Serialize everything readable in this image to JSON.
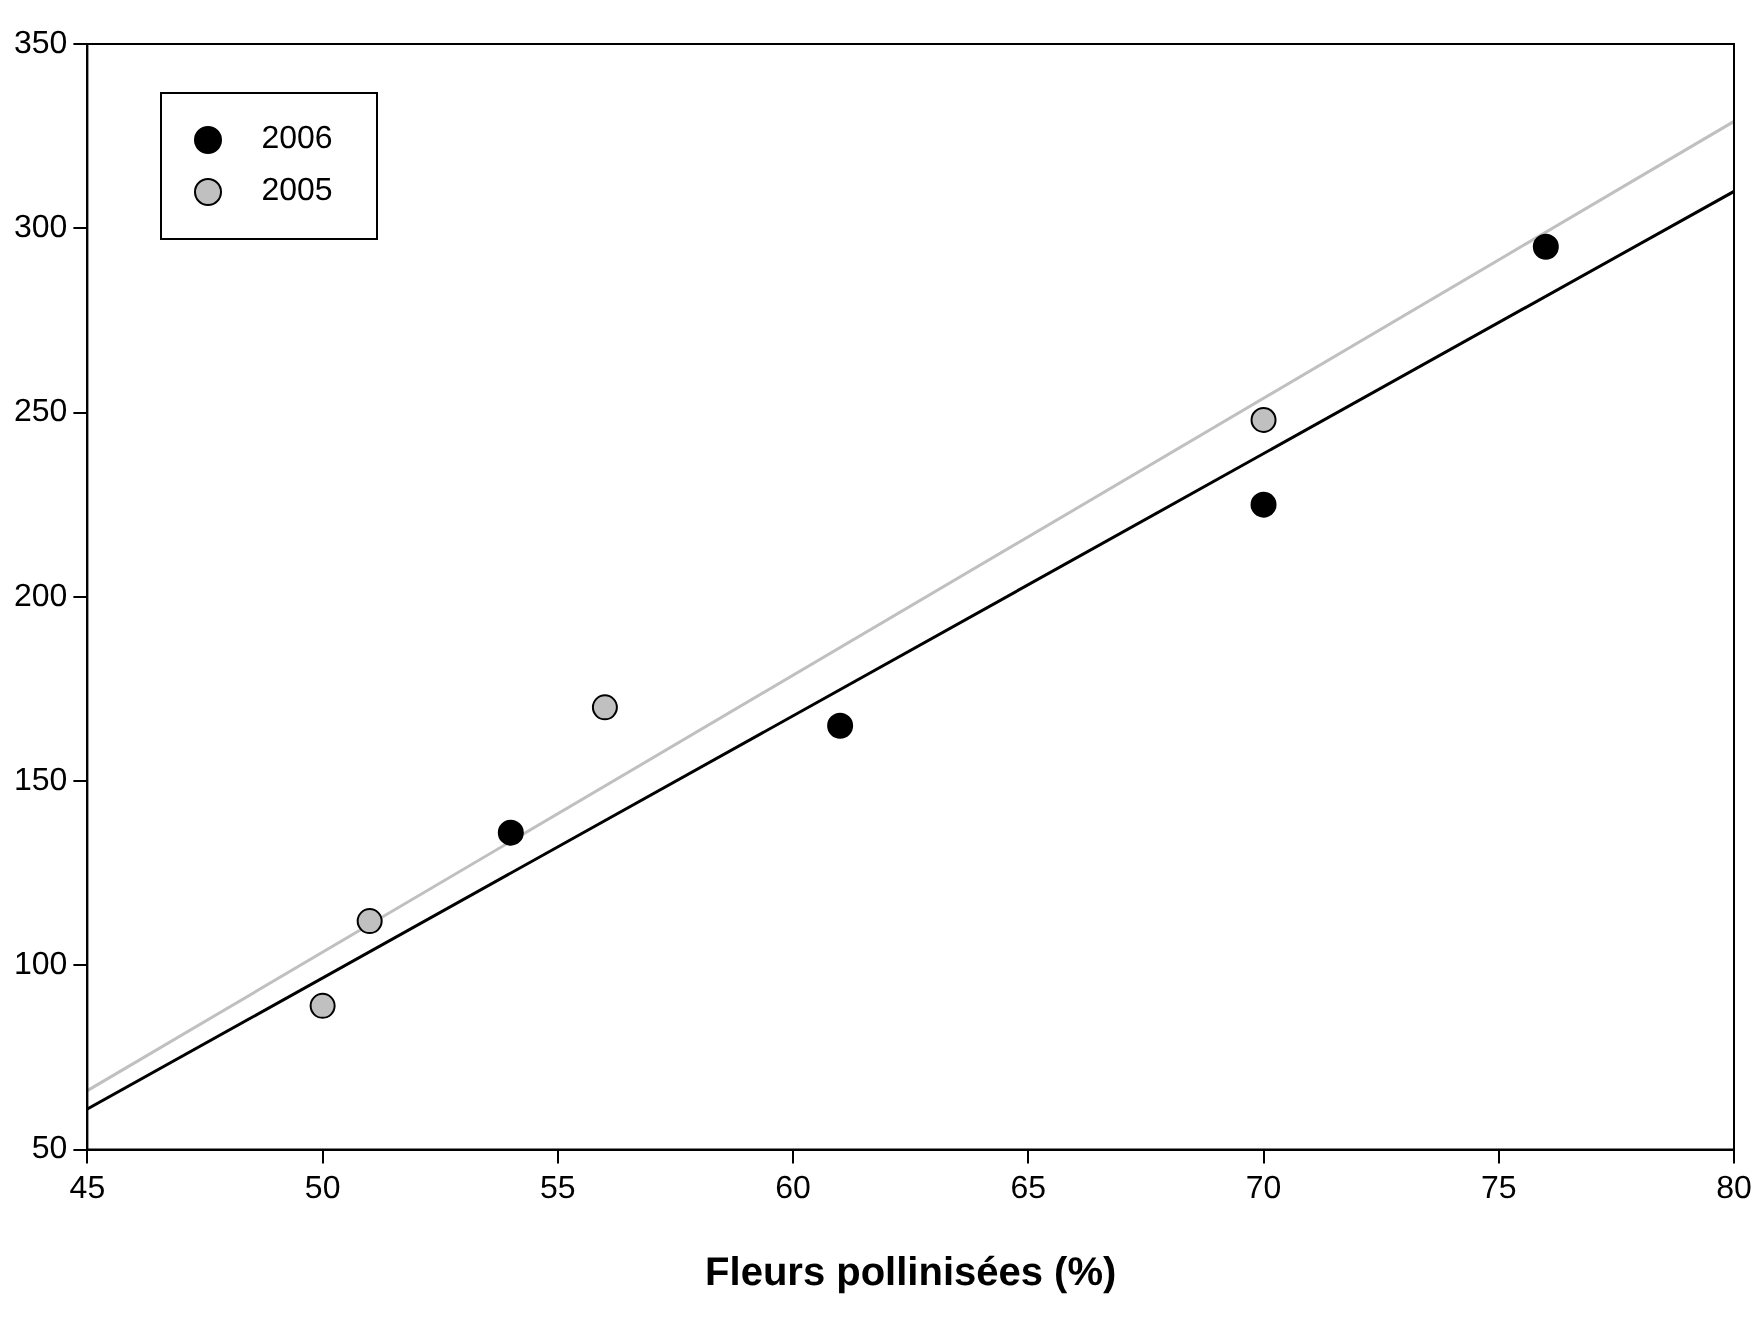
{
  "chart_data": {
    "type": "scatter",
    "xlabel": "Fleurs pollinisées (%)",
    "xlim": [
      45,
      80
    ],
    "xticks": [
      45,
      50,
      55,
      60,
      65,
      70,
      75,
      80
    ],
    "ylim": [
      50,
      350
    ],
    "yticks": [
      50,
      100,
      150,
      200,
      250,
      300,
      350
    ],
    "grid": false,
    "legend": "top left",
    "series": [
      {
        "name": "2006",
        "color": "#000000",
        "marker": "circle",
        "x": [
          54,
          61,
          70,
          76
        ],
        "values": [
          136,
          165,
          225,
          295
        ]
      },
      {
        "name": "2005",
        "color": "#c0c0c0",
        "marker": "circle",
        "x": [
          50,
          51,
          56,
          70
        ],
        "values": [
          89,
          112,
          170,
          248
        ]
      },
      {
        "type": "line",
        "color": "#000000",
        "marker": "none",
        "x": [
          45,
          80
        ],
        "values": [
          61,
          310
        ]
      },
      {
        "type": "line",
        "color": "#c0c0c0",
        "marker": "none",
        "x": [
          45,
          80
        ],
        "values": [
          66,
          329
        ]
      }
    ]
  }
}
